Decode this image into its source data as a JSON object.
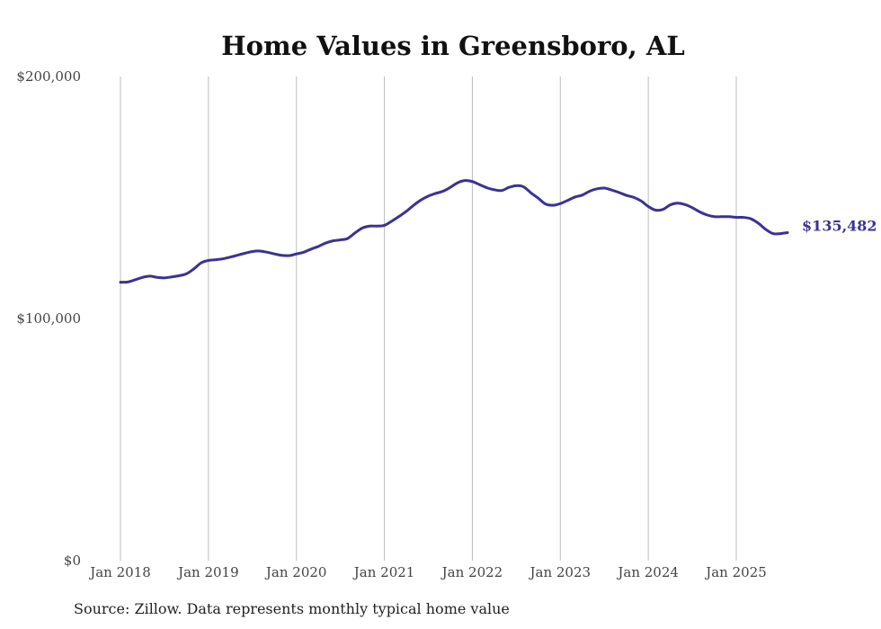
{
  "chart_data": {
    "type": "line",
    "title": "Home Values in Greensboro, AL",
    "xlabel": "",
    "ylabel": "",
    "ylim": [
      0,
      200000
    ],
    "y_ticks": [
      {
        "value": 0,
        "label": "$0"
      },
      {
        "value": 100000,
        "label": "$100,000"
      },
      {
        "value": 200000,
        "label": "$200,000"
      }
    ],
    "x_ticks": [
      {
        "value": 2018.0,
        "label": "Jan 2018"
      },
      {
        "value": 2019.0,
        "label": "Jan 2019"
      },
      {
        "value": 2020.0,
        "label": "Jan 2020"
      },
      {
        "value": 2021.0,
        "label": "Jan 2021"
      },
      {
        "value": 2022.0,
        "label": "Jan 2022"
      },
      {
        "value": 2023.0,
        "label": "Jan 2023"
      },
      {
        "value": 2024.0,
        "label": "Jan 2024"
      },
      {
        "value": 2025.0,
        "label": "Jan 2025"
      }
    ],
    "grid": {
      "vertical": true,
      "horizontal": false
    },
    "series": [
      {
        "name": "Typical home value",
        "color": "#3b3294",
        "end_label": "$135,482",
        "points": [
          {
            "x": 2018.0,
            "y": 115000
          },
          {
            "x": 2018.083,
            "y": 115100
          },
          {
            "x": 2018.167,
            "y": 116000
          },
          {
            "x": 2018.25,
            "y": 117000
          },
          {
            "x": 2018.333,
            "y": 117500
          },
          {
            "x": 2018.417,
            "y": 117000
          },
          {
            "x": 2018.5,
            "y": 116800
          },
          {
            "x": 2018.583,
            "y": 117200
          },
          {
            "x": 2018.667,
            "y": 117700
          },
          {
            "x": 2018.75,
            "y": 118500
          },
          {
            "x": 2018.833,
            "y": 120500
          },
          {
            "x": 2018.917,
            "y": 123000
          },
          {
            "x": 2019.0,
            "y": 124000
          },
          {
            "x": 2019.083,
            "y": 124300
          },
          {
            "x": 2019.167,
            "y": 124700
          },
          {
            "x": 2019.25,
            "y": 125400
          },
          {
            "x": 2019.333,
            "y": 126200
          },
          {
            "x": 2019.417,
            "y": 127000
          },
          {
            "x": 2019.5,
            "y": 127700
          },
          {
            "x": 2019.583,
            "y": 127900
          },
          {
            "x": 2019.667,
            "y": 127400
          },
          {
            "x": 2019.75,
            "y": 126700
          },
          {
            "x": 2019.833,
            "y": 126100
          },
          {
            "x": 2019.917,
            "y": 126000
          },
          {
            "x": 2020.0,
            "y": 126700
          },
          {
            "x": 2020.083,
            "y": 127400
          },
          {
            "x": 2020.167,
            "y": 128700
          },
          {
            "x": 2020.25,
            "y": 129800
          },
          {
            "x": 2020.333,
            "y": 131200
          },
          {
            "x": 2020.417,
            "y": 132100
          },
          {
            "x": 2020.5,
            "y": 132500
          },
          {
            "x": 2020.583,
            "y": 133100
          },
          {
            "x": 2020.667,
            "y": 135400
          },
          {
            "x": 2020.75,
            "y": 137400
          },
          {
            "x": 2020.833,
            "y": 138200
          },
          {
            "x": 2020.917,
            "y": 138200
          },
          {
            "x": 2021.0,
            "y": 138500
          },
          {
            "x": 2021.083,
            "y": 140200
          },
          {
            "x": 2021.167,
            "y": 142200
          },
          {
            "x": 2021.25,
            "y": 144300
          },
          {
            "x": 2021.333,
            "y": 146800
          },
          {
            "x": 2021.417,
            "y": 149000
          },
          {
            "x": 2021.5,
            "y": 150600
          },
          {
            "x": 2021.583,
            "y": 151700
          },
          {
            "x": 2021.667,
            "y": 152600
          },
          {
            "x": 2021.75,
            "y": 154200
          },
          {
            "x": 2021.833,
            "y": 156100
          },
          {
            "x": 2021.917,
            "y": 157000
          },
          {
            "x": 2022.0,
            "y": 156600
          },
          {
            "x": 2022.083,
            "y": 155300
          },
          {
            "x": 2022.167,
            "y": 154000
          },
          {
            "x": 2022.25,
            "y": 153200
          },
          {
            "x": 2022.333,
            "y": 152900
          },
          {
            "x": 2022.417,
            "y": 154200
          },
          {
            "x": 2022.5,
            "y": 154900
          },
          {
            "x": 2022.583,
            "y": 154400
          },
          {
            "x": 2022.667,
            "y": 151900
          },
          {
            "x": 2022.75,
            "y": 149700
          },
          {
            "x": 2022.833,
            "y": 147300
          },
          {
            "x": 2022.917,
            "y": 146800
          },
          {
            "x": 2023.0,
            "y": 147500
          },
          {
            "x": 2023.083,
            "y": 148800
          },
          {
            "x": 2023.167,
            "y": 150200
          },
          {
            "x": 2023.25,
            "y": 151000
          },
          {
            "x": 2023.333,
            "y": 152600
          },
          {
            "x": 2023.417,
            "y": 153600
          },
          {
            "x": 2023.5,
            "y": 153900
          },
          {
            "x": 2023.583,
            "y": 153100
          },
          {
            "x": 2023.667,
            "y": 152100
          },
          {
            "x": 2023.75,
            "y": 150900
          },
          {
            "x": 2023.833,
            "y": 150100
          },
          {
            "x": 2023.917,
            "y": 148600
          },
          {
            "x": 2024.0,
            "y": 146300
          },
          {
            "x": 2024.083,
            "y": 144800
          },
          {
            "x": 2024.167,
            "y": 145100
          },
          {
            "x": 2024.25,
            "y": 147000
          },
          {
            "x": 2024.333,
            "y": 147700
          },
          {
            "x": 2024.417,
            "y": 147100
          },
          {
            "x": 2024.5,
            "y": 145800
          },
          {
            "x": 2024.583,
            "y": 144100
          },
          {
            "x": 2024.667,
            "y": 142800
          },
          {
            "x": 2024.75,
            "y": 142100
          },
          {
            "x": 2024.833,
            "y": 142100
          },
          {
            "x": 2024.917,
            "y": 142100
          },
          {
            "x": 2025.0,
            "y": 141800
          },
          {
            "x": 2025.083,
            "y": 141800
          },
          {
            "x": 2025.167,
            "y": 141200
          },
          {
            "x": 2025.25,
            "y": 139400
          },
          {
            "x": 2025.333,
            "y": 136900
          },
          {
            "x": 2025.417,
            "y": 135100
          },
          {
            "x": 2025.5,
            "y": 135100
          },
          {
            "x": 2025.583,
            "y": 135482
          }
        ]
      }
    ],
    "source": "Source: Zillow. Data represents monthly typical home value"
  }
}
